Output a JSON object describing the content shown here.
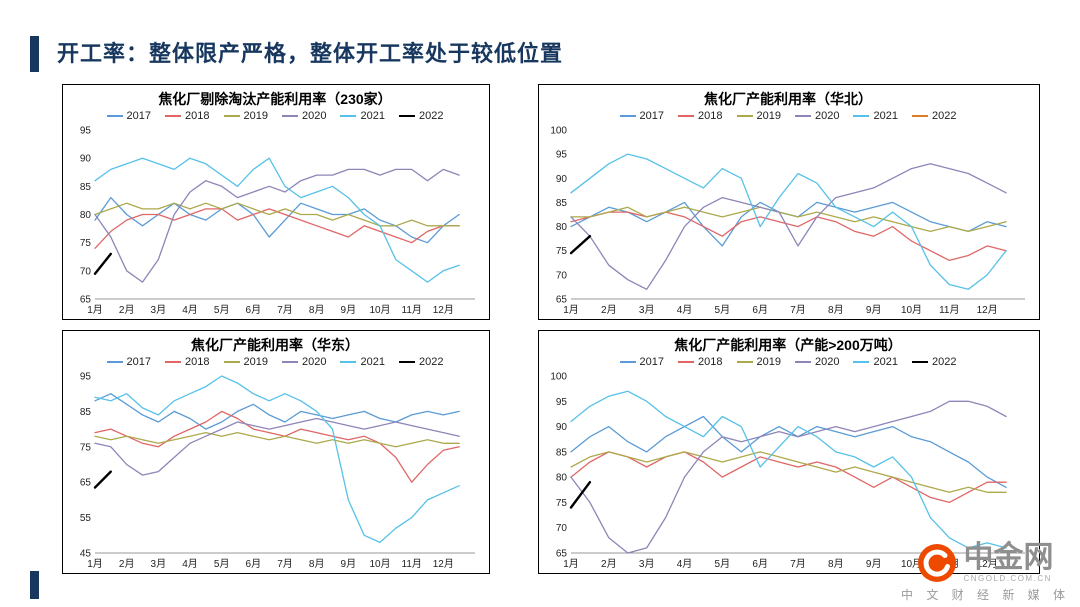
{
  "slide": {
    "title": "开工率：整体限产严格，整体开工率处于较低位置"
  },
  "watermark": {
    "brand": "中金网",
    "domain": "CNGOLD.COM.CN",
    "tagline": "中 文 财 经 新 媒 体",
    "logo_color": "#ED4A00"
  },
  "chart_data": [
    {
      "type": "line",
      "title": "焦化厂剔除淘汰产能利用率（230家）",
      "xlabel": "",
      "ylabel": "",
      "ylim": [
        65,
        95
      ],
      "yticks": [
        65,
        70,
        75,
        80,
        85,
        90,
        95
      ],
      "x_labels": [
        "1月",
        "2月",
        "3月",
        "4月",
        "5月",
        "6月",
        "7月",
        "8月",
        "9月",
        "10月",
        "11月",
        "12月"
      ],
      "legend_position": "top",
      "grid": false,
      "series": [
        {
          "name": "2017",
          "color": "#5B9BD5",
          "values": [
            79,
            83,
            80,
            78,
            80,
            82,
            80,
            79,
            81,
            82,
            80,
            76,
            79,
            82,
            81,
            80,
            80,
            81,
            79,
            78,
            76,
            75,
            78,
            80
          ]
        },
        {
          "name": "2018",
          "color": "#E06666",
          "values": [
            74,
            77,
            79,
            80,
            80,
            79,
            80,
            81,
            81,
            79,
            80,
            81,
            80,
            79,
            78,
            77,
            76,
            78,
            77,
            76,
            75,
            77,
            78,
            78
          ]
        },
        {
          "name": "2019",
          "color": "#ACA94B",
          "values": [
            80,
            81,
            82,
            81,
            81,
            82,
            81,
            82,
            81,
            82,
            81,
            80,
            81,
            80,
            80,
            79,
            80,
            79,
            78,
            78,
            79,
            78,
            78,
            78
          ]
        },
        {
          "name": "2020",
          "color": "#8D85B8",
          "values": [
            80,
            76,
            70,
            68,
            72,
            80,
            84,
            86,
            85,
            83,
            84,
            85,
            84,
            86,
            87,
            87,
            88,
            88,
            87,
            88,
            88,
            86,
            88,
            87
          ]
        },
        {
          "name": "2021",
          "color": "#56C1E8",
          "values": [
            86,
            88,
            89,
            90,
            89,
            88,
            90,
            89,
            87,
            85,
            88,
            90,
            85,
            83,
            84,
            85,
            83,
            80,
            78,
            72,
            70,
            68,
            70,
            71
          ]
        },
        {
          "name": "2022",
          "color": "#000000",
          "width": 2.4,
          "values": [
            69.5,
            73
          ]
        }
      ]
    },
    {
      "type": "line",
      "title": "焦化厂产能利用率（华北）",
      "xlabel": "",
      "ylabel": "",
      "ylim": [
        65,
        100
      ],
      "yticks": [
        65,
        70,
        75,
        80,
        85,
        90,
        95,
        100
      ],
      "x_labels": [
        "1月",
        "2月",
        "3月",
        "4月",
        "5月",
        "6月",
        "7月",
        "8月",
        "9月",
        "10月",
        "11月",
        "12月"
      ],
      "legend_position": "top",
      "grid": false,
      "series": [
        {
          "name": "2017",
          "color": "#5B9BD5",
          "values": [
            80,
            82,
            84,
            83,
            81,
            83,
            85,
            80,
            76,
            82,
            85,
            83,
            82,
            85,
            84,
            83,
            84,
            85,
            83,
            81,
            80,
            79,
            81,
            80
          ]
        },
        {
          "name": "2018",
          "color": "#E06666",
          "values": [
            81,
            82,
            83,
            83,
            82,
            83,
            82,
            80,
            78,
            81,
            82,
            81,
            80,
            82,
            81,
            79,
            78,
            80,
            77,
            75,
            73,
            74,
            76,
            75
          ]
        },
        {
          "name": "2019",
          "color": "#ACA94B",
          "values": [
            82,
            82,
            83,
            84,
            82,
            83,
            84,
            83,
            82,
            83,
            84,
            83,
            82,
            83,
            82,
            81,
            82,
            81,
            80,
            79,
            80,
            79,
            80,
            81
          ]
        },
        {
          "name": "2020",
          "color": "#8D85B8",
          "values": [
            82,
            78,
            72,
            69,
            67,
            73,
            80,
            84,
            86,
            85,
            84,
            83,
            76,
            82,
            86,
            87,
            88,
            90,
            92,
            93,
            92,
            91,
            89,
            87
          ]
        },
        {
          "name": "2021",
          "color": "#56C1E8",
          "values": [
            87,
            90,
            93,
            95,
            94,
            92,
            90,
            88,
            92,
            90,
            80,
            86,
            91,
            89,
            84,
            82,
            80,
            83,
            80,
            72,
            68,
            67,
            70,
            75
          ]
        },
        {
          "name": "2022",
          "color": "#000000",
          "legend_color": "#E07B28",
          "width": 2.4,
          "values": [
            74.5,
            78
          ]
        }
      ]
    },
    {
      "type": "line",
      "title": "焦化厂产能利用率（华东）",
      "xlabel": "",
      "ylabel": "",
      "ylim": [
        45,
        95
      ],
      "yticks": [
        45,
        55,
        65,
        75,
        85,
        95
      ],
      "x_labels": [
        "1月",
        "2月",
        "3月",
        "4月",
        "5月",
        "6月",
        "7月",
        "8月",
        "9月",
        "10月",
        "11月",
        "12月"
      ],
      "legend_position": "top",
      "grid": false,
      "series": [
        {
          "name": "2017",
          "color": "#5B9BD5",
          "values": [
            88,
            90,
            87,
            84,
            82,
            85,
            83,
            80,
            82,
            85,
            87,
            84,
            82,
            85,
            84,
            83,
            84,
            85,
            83,
            82,
            84,
            85,
            84,
            85
          ]
        },
        {
          "name": "2018",
          "color": "#E06666",
          "values": [
            79,
            80,
            78,
            76,
            75,
            78,
            80,
            82,
            85,
            83,
            80,
            79,
            78,
            80,
            79,
            78,
            77,
            78,
            76,
            72,
            65,
            70,
            74,
            75
          ]
        },
        {
          "name": "2019",
          "color": "#ACA94B",
          "values": [
            78,
            77,
            78,
            77,
            76,
            77,
            78,
            79,
            78,
            79,
            78,
            77,
            78,
            77,
            76,
            77,
            76,
            77,
            76,
            75,
            76,
            77,
            76,
            76
          ]
        },
        {
          "name": "2020",
          "color": "#8D85B8",
          "values": [
            76,
            75,
            70,
            67,
            68,
            72,
            76,
            78,
            80,
            82,
            81,
            80,
            81,
            82,
            83,
            82,
            81,
            80,
            81,
            82,
            81,
            80,
            79,
            78
          ]
        },
        {
          "name": "2021",
          "color": "#56C1E8",
          "values": [
            89,
            88,
            90,
            86,
            84,
            88,
            90,
            92,
            95,
            93,
            90,
            88,
            90,
            88,
            85,
            80,
            60,
            50,
            48,
            52,
            55,
            60,
            62,
            64
          ]
        },
        {
          "name": "2022",
          "color": "#000000",
          "width": 2.4,
          "values": [
            63.5,
            68
          ]
        }
      ]
    },
    {
      "type": "line",
      "title": "焦化厂产能利用率（产能>200万吨）",
      "xlabel": "",
      "ylabel": "",
      "ylim": [
        65,
        100
      ],
      "yticks": [
        65,
        70,
        75,
        80,
        85,
        90,
        95,
        100
      ],
      "x_labels": [
        "1月",
        "2月",
        "3月",
        "4月",
        "5月",
        "6月",
        "7月",
        "8月",
        "9月",
        "10月",
        "11月",
        "12月"
      ],
      "legend_position": "top",
      "grid": false,
      "series": [
        {
          "name": "2017",
          "color": "#5B9BD5",
          "values": [
            85,
            88,
            90,
            87,
            85,
            88,
            90,
            92,
            88,
            85,
            88,
            90,
            88,
            90,
            89,
            88,
            89,
            90,
            88,
            87,
            85,
            83,
            80,
            78
          ]
        },
        {
          "name": "2018",
          "color": "#E06666",
          "values": [
            80,
            83,
            85,
            84,
            82,
            84,
            85,
            83,
            80,
            82,
            84,
            83,
            82,
            83,
            82,
            80,
            78,
            80,
            78,
            76,
            75,
            77,
            79,
            79
          ]
        },
        {
          "name": "2019",
          "color": "#ACA94B",
          "values": [
            82,
            84,
            85,
            84,
            83,
            84,
            85,
            84,
            83,
            84,
            85,
            84,
            83,
            82,
            81,
            82,
            81,
            80,
            79,
            78,
            77,
            78,
            77,
            77
          ]
        },
        {
          "name": "2020",
          "color": "#8D85B8",
          "values": [
            80,
            75,
            68,
            65,
            66,
            72,
            80,
            85,
            88,
            87,
            88,
            89,
            88,
            89,
            90,
            89,
            90,
            91,
            92,
            93,
            95,
            95,
            94,
            92
          ]
        },
        {
          "name": "2021",
          "color": "#56C1E8",
          "values": [
            91,
            94,
            96,
            97,
            95,
            92,
            90,
            88,
            92,
            90,
            82,
            86,
            90,
            88,
            85,
            84,
            82,
            84,
            80,
            72,
            68,
            66,
            67,
            66
          ]
        },
        {
          "name": "2022",
          "color": "#000000",
          "width": 2.4,
          "values": [
            74,
            79
          ]
        }
      ]
    }
  ]
}
